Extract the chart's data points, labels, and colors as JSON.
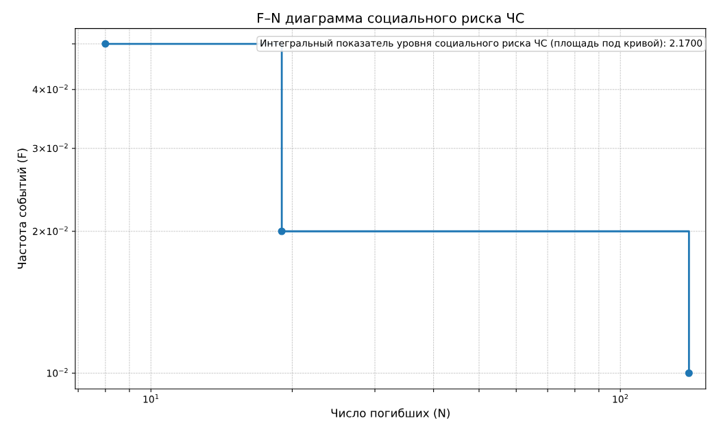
{
  "chart_data": {
    "type": "step",
    "title": "F–N диаграмма социального риска ЧС",
    "xlabel": "Число погибших (N)",
    "ylabel": "Частота событий (F)",
    "x": [
      8,
      19,
      140
    ],
    "series": [
      {
        "color": "#1f77b4",
        "values": [
          0.05,
          0.02,
          0.01
        ]
      }
    ],
    "log": "xy",
    "marker": "circle",
    "line_style": "solid",
    "grid": true,
    "xlim": [
      6.9,
      152
    ],
    "ylim": [
      0.00926,
      0.0539
    ],
    "xticks": [
      {
        "value": 7,
        "label": null
      },
      {
        "value": 8,
        "label": null
      },
      {
        "value": 9,
        "label": null
      },
      {
        "value": 10,
        "label": "10$^{1}$"
      },
      {
        "value": 20,
        "label": null
      },
      {
        "value": 30,
        "label": null
      },
      {
        "value": 40,
        "label": null
      },
      {
        "value": 50,
        "label": null
      },
      {
        "value": 60,
        "label": null
      },
      {
        "value": 70,
        "label": null
      },
      {
        "value": 80,
        "label": null
      },
      {
        "value": 90,
        "label": null
      },
      {
        "value": 100,
        "label": "10$^{2}$"
      }
    ],
    "yticks": [
      {
        "value": 0.01,
        "label": "10$^{−2}$"
      },
      {
        "value": 0.02,
        "label": "2×10$^{−2}$"
      },
      {
        "value": 0.03,
        "label": "3×10$^{−2}$"
      },
      {
        "value": 0.04,
        "label": "4×10$^{−2}$"
      },
      {
        "value": 0.05,
        "label": null
      }
    ],
    "annotations": [
      "Интегральный показатель уровня социального риска ЧС (площадь под кривой): 2.1700"
    ]
  }
}
